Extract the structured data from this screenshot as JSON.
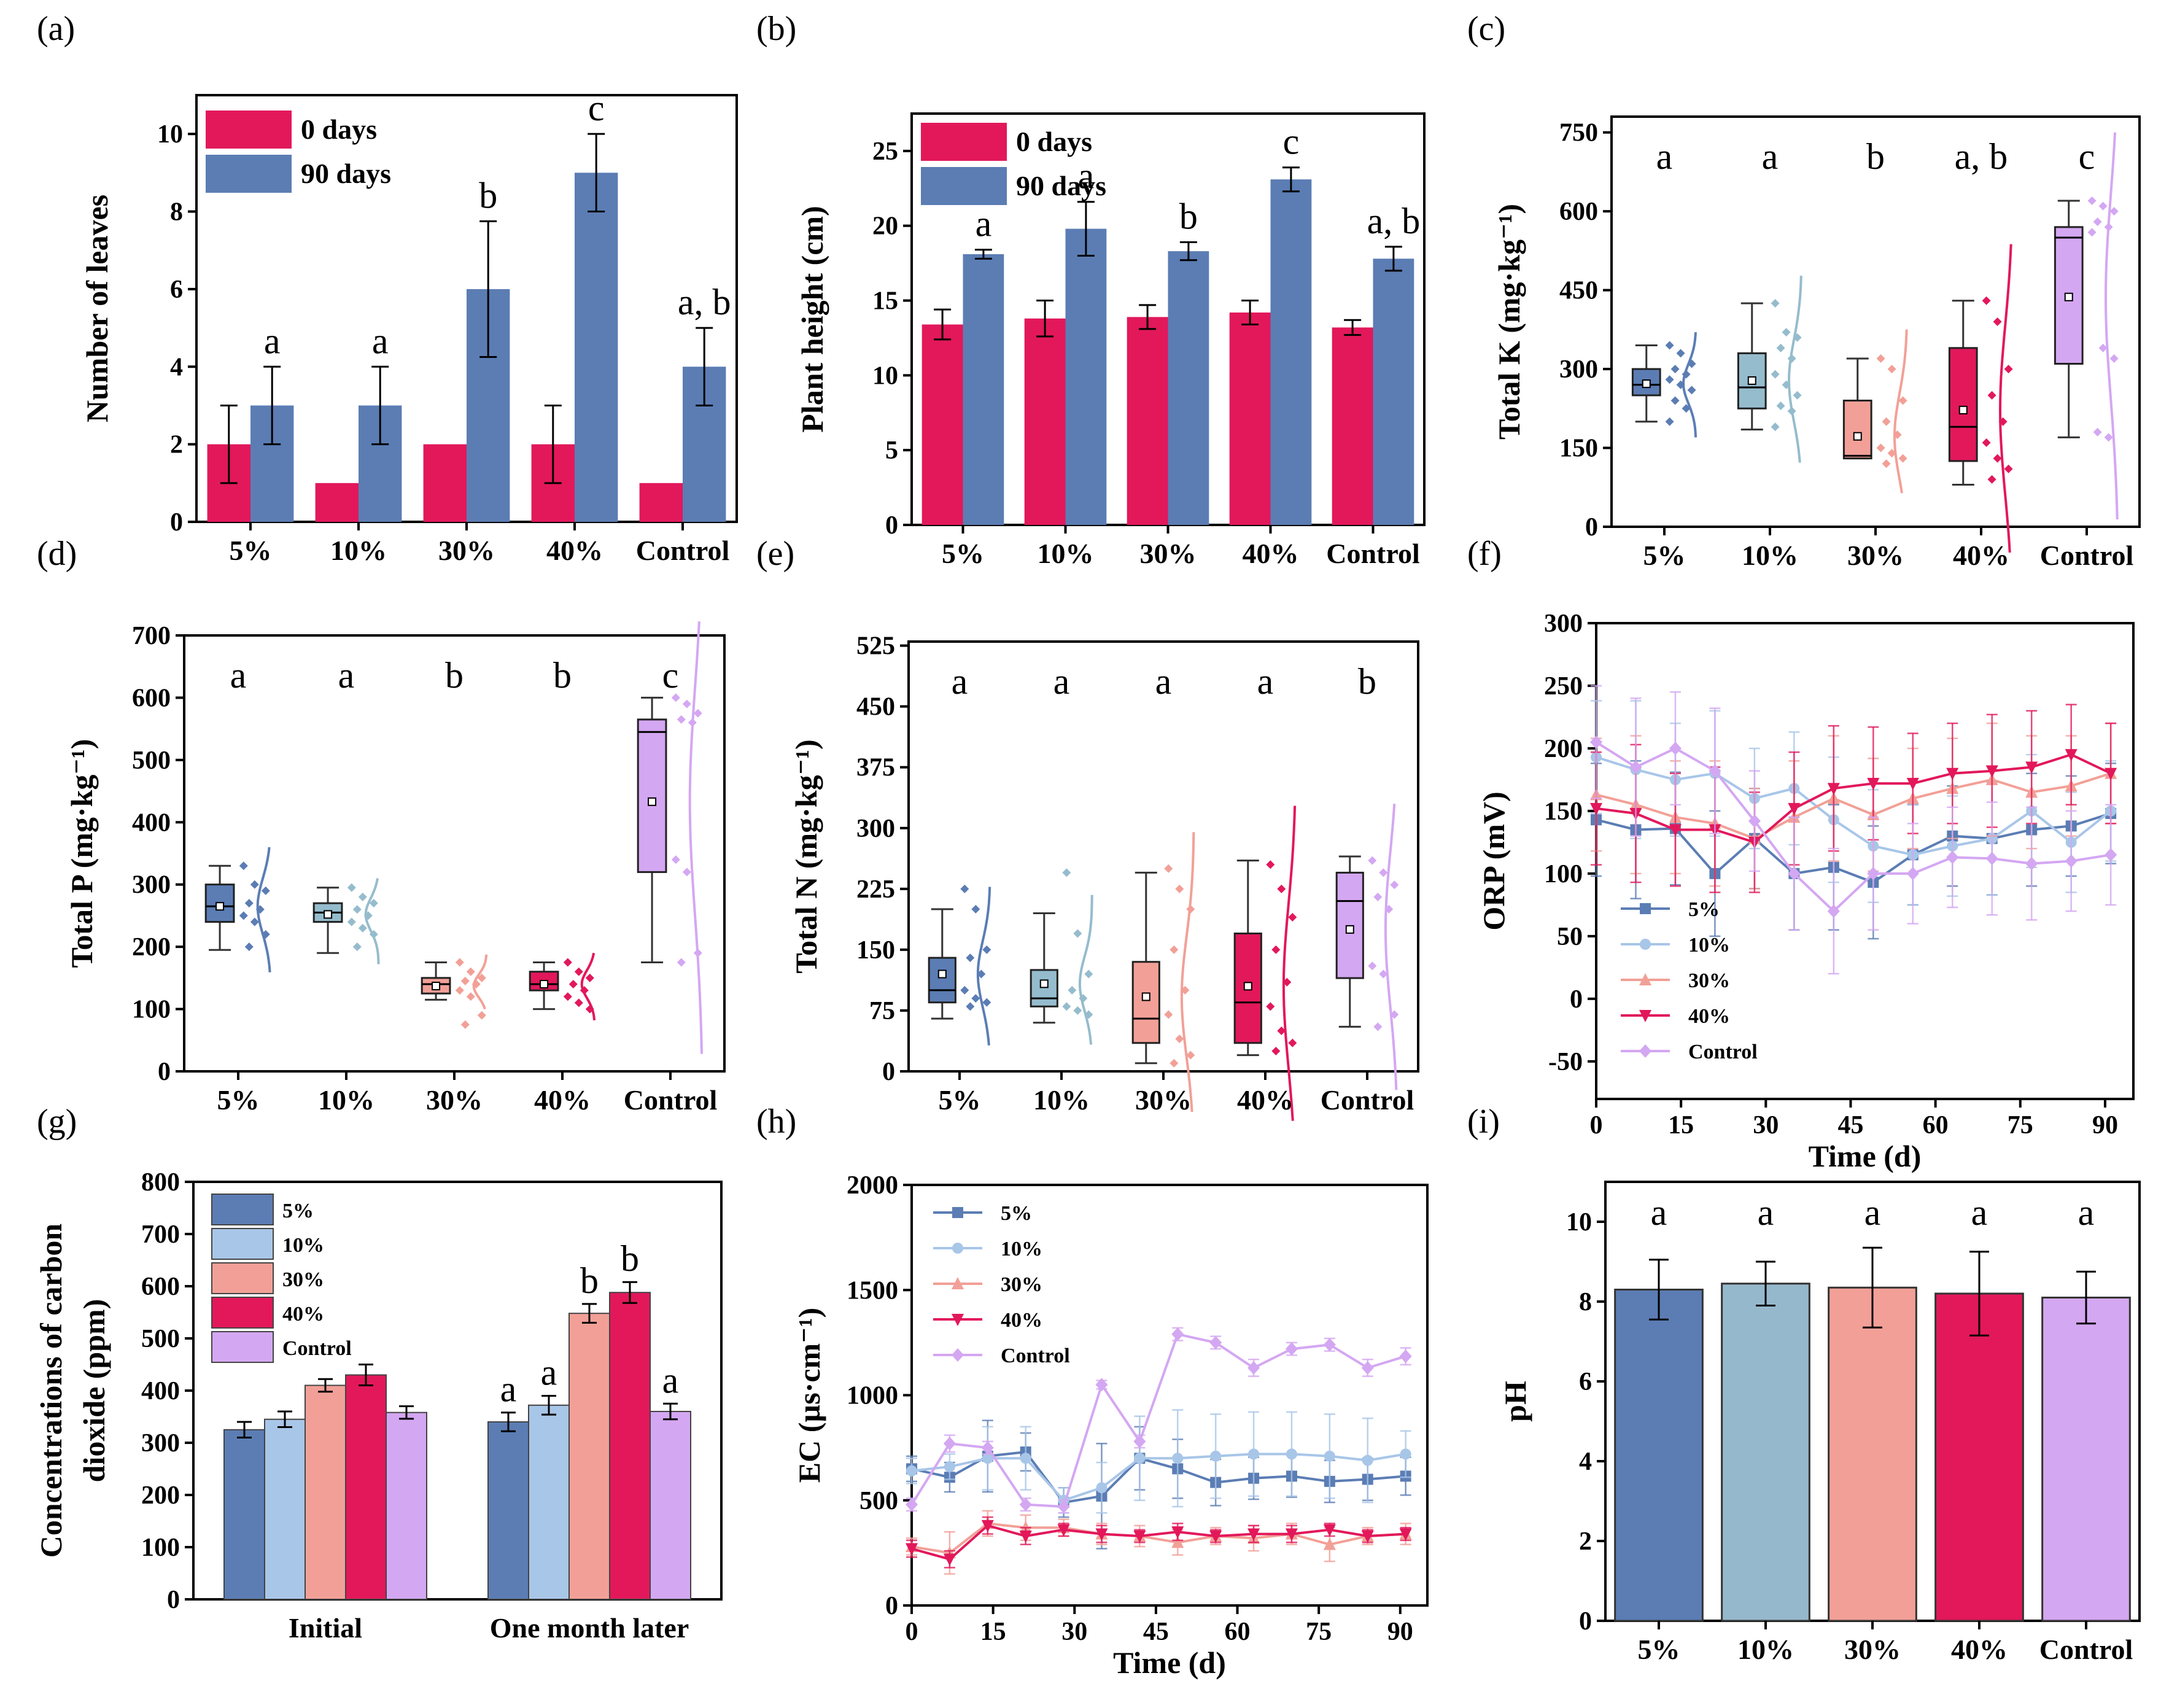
{
  "figure_labels": [
    "(a)",
    "(b)",
    "(c)",
    "(d)",
    "(e)",
    "(f)",
    "(g)",
    "(h)",
    "(i)"
  ],
  "colors": {
    "c5": "#5b7db4",
    "c10": "#a8c6e8",
    "c30": "#f2a097",
    "c40": "#e2185b",
    "cControl": "#d4a7f2",
    "c10_box": "#95bccd",
    "day0": "#e2185b",
    "day90": "#5b7db4",
    "ph10": "#96b8cc"
  },
  "chart_data": [
    {
      "id": "a",
      "type": "bar",
      "ylabel": "Number of leaves",
      "xlabel": "",
      "categories": [
        "5%",
        "10%",
        "30%",
        "40%",
        "Control"
      ],
      "ylim": [
        0,
        11
      ],
      "yticks": [
        "0",
        "2",
        "4",
        "6",
        "8",
        "10"
      ],
      "series": [
        {
          "name": "0 days",
          "values": [
            2,
            1,
            2,
            2,
            1
          ],
          "errors": [
            1,
            0,
            0,
            1,
            0
          ]
        },
        {
          "name": "90 days",
          "values": [
            3,
            3,
            6,
            9,
            4
          ],
          "errors": [
            1,
            1,
            1.75,
            1,
            1
          ]
        }
      ],
      "significance": [
        "a",
        "a",
        "b",
        "c",
        "a, b"
      ]
    },
    {
      "id": "b",
      "type": "bar",
      "ylabel": "Plant height (cm)",
      "xlabel": "",
      "categories": [
        "5%",
        "10%",
        "30%",
        "40%",
        "Control"
      ],
      "ylim": [
        0,
        27.5
      ],
      "yticks": [
        "0",
        "5",
        "10",
        "15",
        "20",
        "25"
      ],
      "series": [
        {
          "name": "0 days",
          "values": [
            13.4,
            13.8,
            13.9,
            14.2,
            13.2
          ],
          "errors": [
            1.0,
            1.2,
            0.8,
            0.8,
            0.5
          ]
        },
        {
          "name": "90 days",
          "values": [
            18.1,
            19.8,
            18.3,
            23.1,
            17.8
          ],
          "errors": [
            0.3,
            1.8,
            0.6,
            0.8,
            0.8
          ]
        }
      ],
      "significance": [
        "a",
        "a",
        "b",
        "c",
        "a, b"
      ]
    },
    {
      "id": "c",
      "type": "box",
      "ylabel": "Total K (mg·kg⁻¹)",
      "xlabel": "",
      "categories": [
        "5%",
        "10%",
        "30%",
        "40%",
        "Control"
      ],
      "ylim": [
        0,
        780
      ],
      "yticks": [
        "0",
        "150",
        "300",
        "450",
        "600",
        "750"
      ],
      "boxes": [
        {
          "min": 200,
          "q1": 250,
          "median": 270,
          "q3": 300,
          "max": 345,
          "mean": 272,
          "points": [
            345,
            330,
            310,
            300,
            290,
            280,
            270,
            260,
            240,
            225,
            200
          ]
        },
        {
          "min": 185,
          "q1": 225,
          "median": 265,
          "q3": 330,
          "max": 425,
          "mean": 278,
          "points": [
            425,
            370,
            360,
            340,
            320,
            290,
            270,
            250,
            230,
            220,
            190
          ]
        },
        {
          "min": 130,
          "q1": 130,
          "median": 135,
          "q3": 240,
          "max": 320,
          "mean": 172,
          "points": [
            320,
            300,
            240,
            200,
            175,
            150,
            140,
            130,
            120
          ]
        },
        {
          "min": 80,
          "q1": 125,
          "median": 190,
          "q3": 340,
          "max": 430,
          "mean": 222,
          "points": [
            430,
            390,
            300,
            250,
            200,
            160,
            130,
            110,
            90
          ]
        },
        {
          "min": 170,
          "q1": 310,
          "median": 550,
          "q3": 570,
          "max": 620,
          "mean": 437,
          "points": [
            620,
            610,
            600,
            580,
            570,
            560,
            340,
            320,
            180,
            170
          ]
        }
      ],
      "significance": [
        "a",
        "a",
        "b",
        "a, b",
        "c"
      ]
    },
    {
      "id": "d",
      "type": "box",
      "ylabel": "Total P (mg·kg⁻¹)",
      "xlabel": "",
      "categories": [
        "5%",
        "10%",
        "30%",
        "40%",
        "Control"
      ],
      "ylim": [
        0,
        700
      ],
      "yticks": [
        "0",
        "100",
        "200",
        "300",
        "400",
        "500",
        "600",
        "700"
      ],
      "boxes": [
        {
          "min": 195,
          "q1": 240,
          "median": 265,
          "q3": 300,
          "max": 330,
          "mean": 265,
          "points": [
            330,
            300,
            290,
            270,
            260,
            250,
            240,
            220,
            200
          ]
        },
        {
          "min": 190,
          "q1": 240,
          "median": 255,
          "q3": 270,
          "max": 295,
          "mean": 252,
          "points": [
            295,
            280,
            270,
            260,
            250,
            240,
            230,
            220,
            200
          ]
        },
        {
          "min": 115,
          "q1": 125,
          "median": 140,
          "q3": 150,
          "max": 175,
          "mean": 137,
          "points": [
            175,
            160,
            150,
            145,
            140,
            130,
            120,
            90,
            75
          ]
        },
        {
          "min": 100,
          "q1": 130,
          "median": 140,
          "q3": 160,
          "max": 175,
          "mean": 140,
          "points": [
            175,
            160,
            150,
            140,
            130,
            120,
            110,
            100
          ]
        },
        {
          "min": 175,
          "q1": 320,
          "median": 545,
          "q3": 565,
          "max": 600,
          "mean": 433,
          "points": [
            600,
            590,
            575,
            565,
            560,
            340,
            320,
            190,
            175
          ]
        }
      ],
      "significance": [
        "a",
        "a",
        "b",
        "b",
        "c"
      ]
    },
    {
      "id": "e",
      "type": "box",
      "ylabel": "Total N (mg·kg⁻¹)",
      "xlabel": "",
      "categories": [
        "5%",
        "10%",
        "30%",
        "40%",
        "Control"
      ],
      "ylim": [
        0,
        530
      ],
      "yticks": [
        "0",
        "75",
        "150",
        "225",
        "300",
        "375",
        "450",
        "525"
      ],
      "boxes": [
        {
          "min": 65,
          "q1": 85,
          "median": 100,
          "q3": 140,
          "max": 200,
          "mean": 120,
          "points": [
            225,
            200,
            150,
            140,
            120,
            100,
            90,
            85,
            80
          ]
        },
        {
          "min": 60,
          "q1": 80,
          "median": 90,
          "q3": 125,
          "max": 195,
          "mean": 108,
          "points": [
            245,
            170,
            120,
            100,
            90,
            80,
            75,
            70
          ]
        },
        {
          "min": 10,
          "q1": 35,
          "median": 65,
          "q3": 135,
          "max": 245,
          "mean": 92,
          "points": [
            250,
            225,
            200,
            150,
            100,
            70,
            40,
            20,
            10
          ]
        },
        {
          "min": 20,
          "q1": 35,
          "median": 85,
          "q3": 170,
          "max": 260,
          "mean": 105,
          "points": [
            255,
            225,
            190,
            150,
            110,
            80,
            50,
            35,
            25
          ]
        },
        {
          "min": 55,
          "q1": 115,
          "median": 210,
          "q3": 245,
          "max": 265,
          "mean": 175,
          "points": [
            260,
            245,
            230,
            215,
            200,
            130,
            120,
            70,
            55
          ]
        }
      ],
      "significance": [
        "a",
        "a",
        "a",
        "a",
        "b"
      ]
    },
    {
      "id": "f",
      "type": "line",
      "ylabel": "ORP (mV)",
      "xlabel": "Time (d)",
      "xlim": [
        0,
        95
      ],
      "ylim": [
        -80,
        300
      ],
      "xticks": [
        "0",
        "15",
        "30",
        "45",
        "60",
        "75",
        "90"
      ],
      "yticks": [
        "-50",
        "0",
        "50",
        "100",
        "150",
        "200",
        "250",
        "300"
      ],
      "x": [
        0,
        7,
        14,
        21,
        28,
        35,
        42,
        49,
        56,
        63,
        70,
        77,
        84,
        91
      ],
      "series": [
        {
          "name": "5%",
          "values": [
            143,
            135,
            136,
            100,
            128,
            100,
            105,
            93,
            115,
            130,
            128,
            135,
            138,
            148
          ],
          "marker": "square"
        },
        {
          "name": "10%",
          "values": [
            193,
            183,
            175,
            180,
            160,
            168,
            143,
            122,
            115,
            122,
            128,
            150,
            125,
            150
          ],
          "marker": "circle"
        },
        {
          "name": "30%",
          "values": [
            163,
            155,
            145,
            140,
            128,
            145,
            160,
            147,
            160,
            168,
            175,
            165,
            170,
            180
          ],
          "marker": "triangle-up"
        },
        {
          "name": "40%",
          "values": [
            152,
            148,
            135,
            135,
            125,
            152,
            168,
            172,
            172,
            180,
            182,
            185,
            195,
            180
          ],
          "marker": "triangle-down"
        },
        {
          "name": "Control",
          "values": [
            205,
            185,
            200,
            182,
            142,
            100,
            70,
            100,
            100,
            113,
            112,
            108,
            110,
            115
          ],
          "marker": "diamond"
        }
      ],
      "errors": [
        45,
        55,
        45,
        50,
        40,
        45,
        50,
        45,
        40,
        40,
        45,
        45,
        40,
        40
      ],
      "legend_location": "lower-left"
    },
    {
      "id": "g",
      "type": "bar",
      "ylabel": "Concentrations of carbon dioxide (ppm)",
      "ylabel_lines": [
        "Concentrations of carbon",
        "dioxide (ppm)"
      ],
      "xlabel": "",
      "categories": [
        "Initial",
        "One month later"
      ],
      "ylim": [
        0,
        800
      ],
      "yticks": [
        "0",
        "100",
        "200",
        "300",
        "400",
        "500",
        "600",
        "700",
        "800"
      ],
      "series": [
        {
          "name": "5%",
          "values": [
            325,
            340
          ],
          "errors": [
            15,
            18
          ]
        },
        {
          "name": "10%",
          "values": [
            345,
            372
          ],
          "errors": [
            15,
            18
          ]
        },
        {
          "name": "30%",
          "values": [
            410,
            548
          ],
          "errors": [
            12,
            18
          ]
        },
        {
          "name": "40%",
          "values": [
            430,
            588
          ],
          "errors": [
            20,
            20
          ]
        },
        {
          "name": "Control",
          "values": [
            358,
            360
          ],
          "errors": [
            12,
            15
          ]
        }
      ],
      "significance": [
        "a",
        "a",
        "b",
        "b",
        "a"
      ]
    },
    {
      "id": "h",
      "type": "line",
      "ylabel": "EC (µs·cm⁻¹)",
      "xlabel": "Time (d)",
      "xlim": [
        0,
        95
      ],
      "ylim": [
        0,
        2000
      ],
      "xticks": [
        "0",
        "15",
        "30",
        "45",
        "60",
        "75",
        "90"
      ],
      "yticks": [
        "0",
        "500",
        "1000",
        "1500",
        "2000"
      ],
      "x": [
        0,
        7,
        14,
        21,
        28,
        35,
        42,
        49,
        56,
        63,
        70,
        77,
        84,
        91
      ],
      "series": [
        {
          "name": "5%",
          "values": [
            650,
            610,
            710,
            730,
            490,
            520,
            700,
            650,
            585,
            605,
            615,
            590,
            600,
            615
          ],
          "marker": "square",
          "errors": [
            60,
            70,
            170,
            90,
            70,
            250,
            150,
            140,
            110,
            100,
            100,
            100,
            100,
            90
          ]
        },
        {
          "name": "10%",
          "values": [
            640,
            660,
            700,
            700,
            500,
            560,
            700,
            700,
            710,
            720,
            720,
            710,
            690,
            720
          ],
          "marker": "circle",
          "errors": [
            60,
            60,
            150,
            150,
            60,
            120,
            200,
            230,
            200,
            200,
            200,
            200,
            200,
            110
          ]
        },
        {
          "name": "30%",
          "values": [
            280,
            250,
            390,
            370,
            370,
            340,
            330,
            300,
            330,
            320,
            340,
            290,
            330,
            340
          ],
          "marker": "triangle-up",
          "errors": [
            40,
            100,
            60,
            60,
            40,
            50,
            50,
            60,
            40,
            60,
            50,
            80,
            40,
            50
          ]
        },
        {
          "name": "40%",
          "values": [
            270,
            220,
            380,
            330,
            360,
            340,
            330,
            350,
            330,
            340,
            340,
            360,
            330,
            340
          ],
          "marker": "triangle-down",
          "errors": [
            40,
            40,
            40,
            40,
            30,
            40,
            30,
            40,
            30,
            40,
            40,
            30,
            30,
            30
          ]
        },
        {
          "name": "Control",
          "values": [
            480,
            770,
            750,
            480,
            470,
            1050,
            780,
            1290,
            1250,
            1130,
            1220,
            1240,
            1130,
            1185
          ],
          "marker": "diamond",
          "errors": [
            30,
            40,
            30,
            30,
            30,
            20,
            30,
            30,
            30,
            40,
            30,
            30,
            40,
            40
          ]
        }
      ],
      "legend_location": "top-left"
    },
    {
      "id": "i",
      "type": "bar",
      "ylabel": "pH",
      "xlabel": "",
      "categories": [
        "5%",
        "10%",
        "30%",
        "40%",
        "Control"
      ],
      "ylim": [
        0,
        11
      ],
      "yticks": [
        "0",
        "2",
        "4",
        "6",
        "8",
        "10"
      ],
      "series": [
        {
          "name": "pH",
          "values": [
            8.3,
            8.45,
            8.35,
            8.2,
            8.1
          ],
          "errors": [
            0.75,
            0.55,
            1.0,
            1.05,
            0.65
          ]
        }
      ],
      "significance": [
        "a",
        "a",
        "a",
        "a",
        "a"
      ]
    }
  ]
}
